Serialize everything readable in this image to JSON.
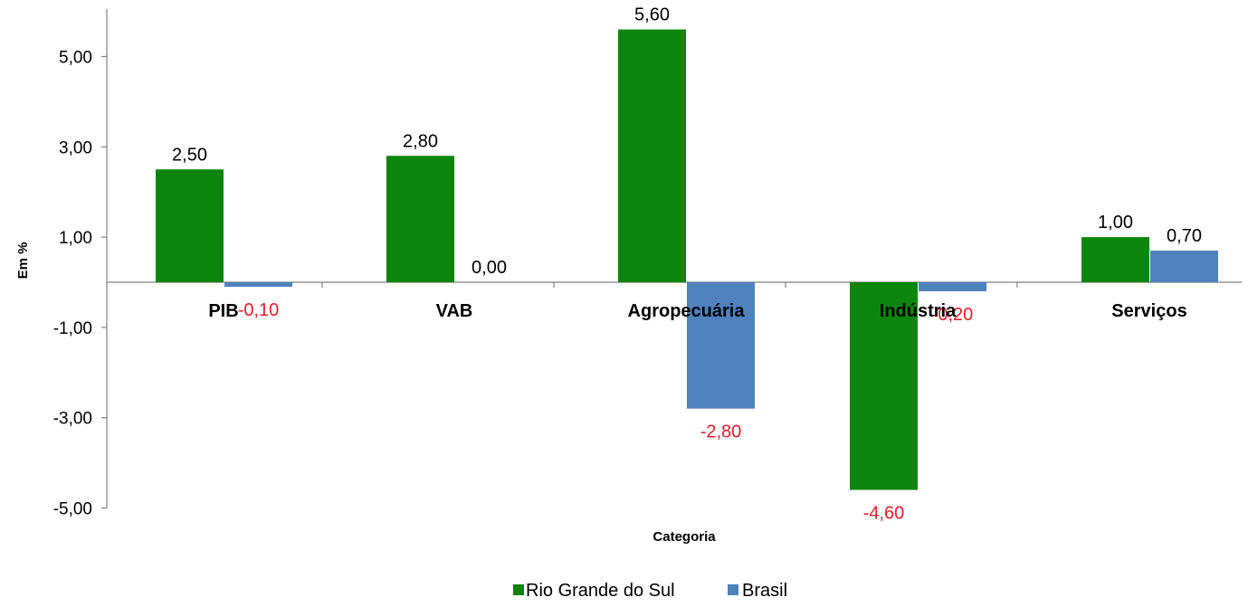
{
  "chart_data": {
    "type": "bar",
    "title": "",
    "xlabel": "Categoria",
    "ylabel": "Em %",
    "categories": [
      "PIB",
      "VAB",
      "Agropecuária",
      "Indústria",
      "Serviços"
    ],
    "series": [
      {
        "name": "Rio Grande do Sul",
        "color": "#0B850B",
        "values": [
          2.5,
          2.8,
          5.6,
          -4.6,
          1.0
        ],
        "labels": [
          "2,50",
          "2,80",
          "5,60",
          "-4,60",
          "1,00"
        ]
      },
      {
        "name": "Brasil",
        "color": "#4F81BD",
        "values": [
          -0.1,
          0.0,
          -2.8,
          -0.2,
          0.7
        ],
        "labels": [
          "-0,10",
          "0,00",
          "-2,80",
          "-0,20",
          "0,70"
        ]
      }
    ],
    "ylim": [
      -5,
      5.6
    ],
    "yticks": [
      5,
      3,
      1,
      -1,
      -3,
      -5
    ],
    "ytick_labels": [
      "5,00",
      "3,00",
      "1,00",
      "-1,00",
      "-3,00",
      "-5,00"
    ],
    "negative_label_color": "#E0202A",
    "positive_label_color": "#000000",
    "legend_position": "bottom",
    "grid": false
  }
}
